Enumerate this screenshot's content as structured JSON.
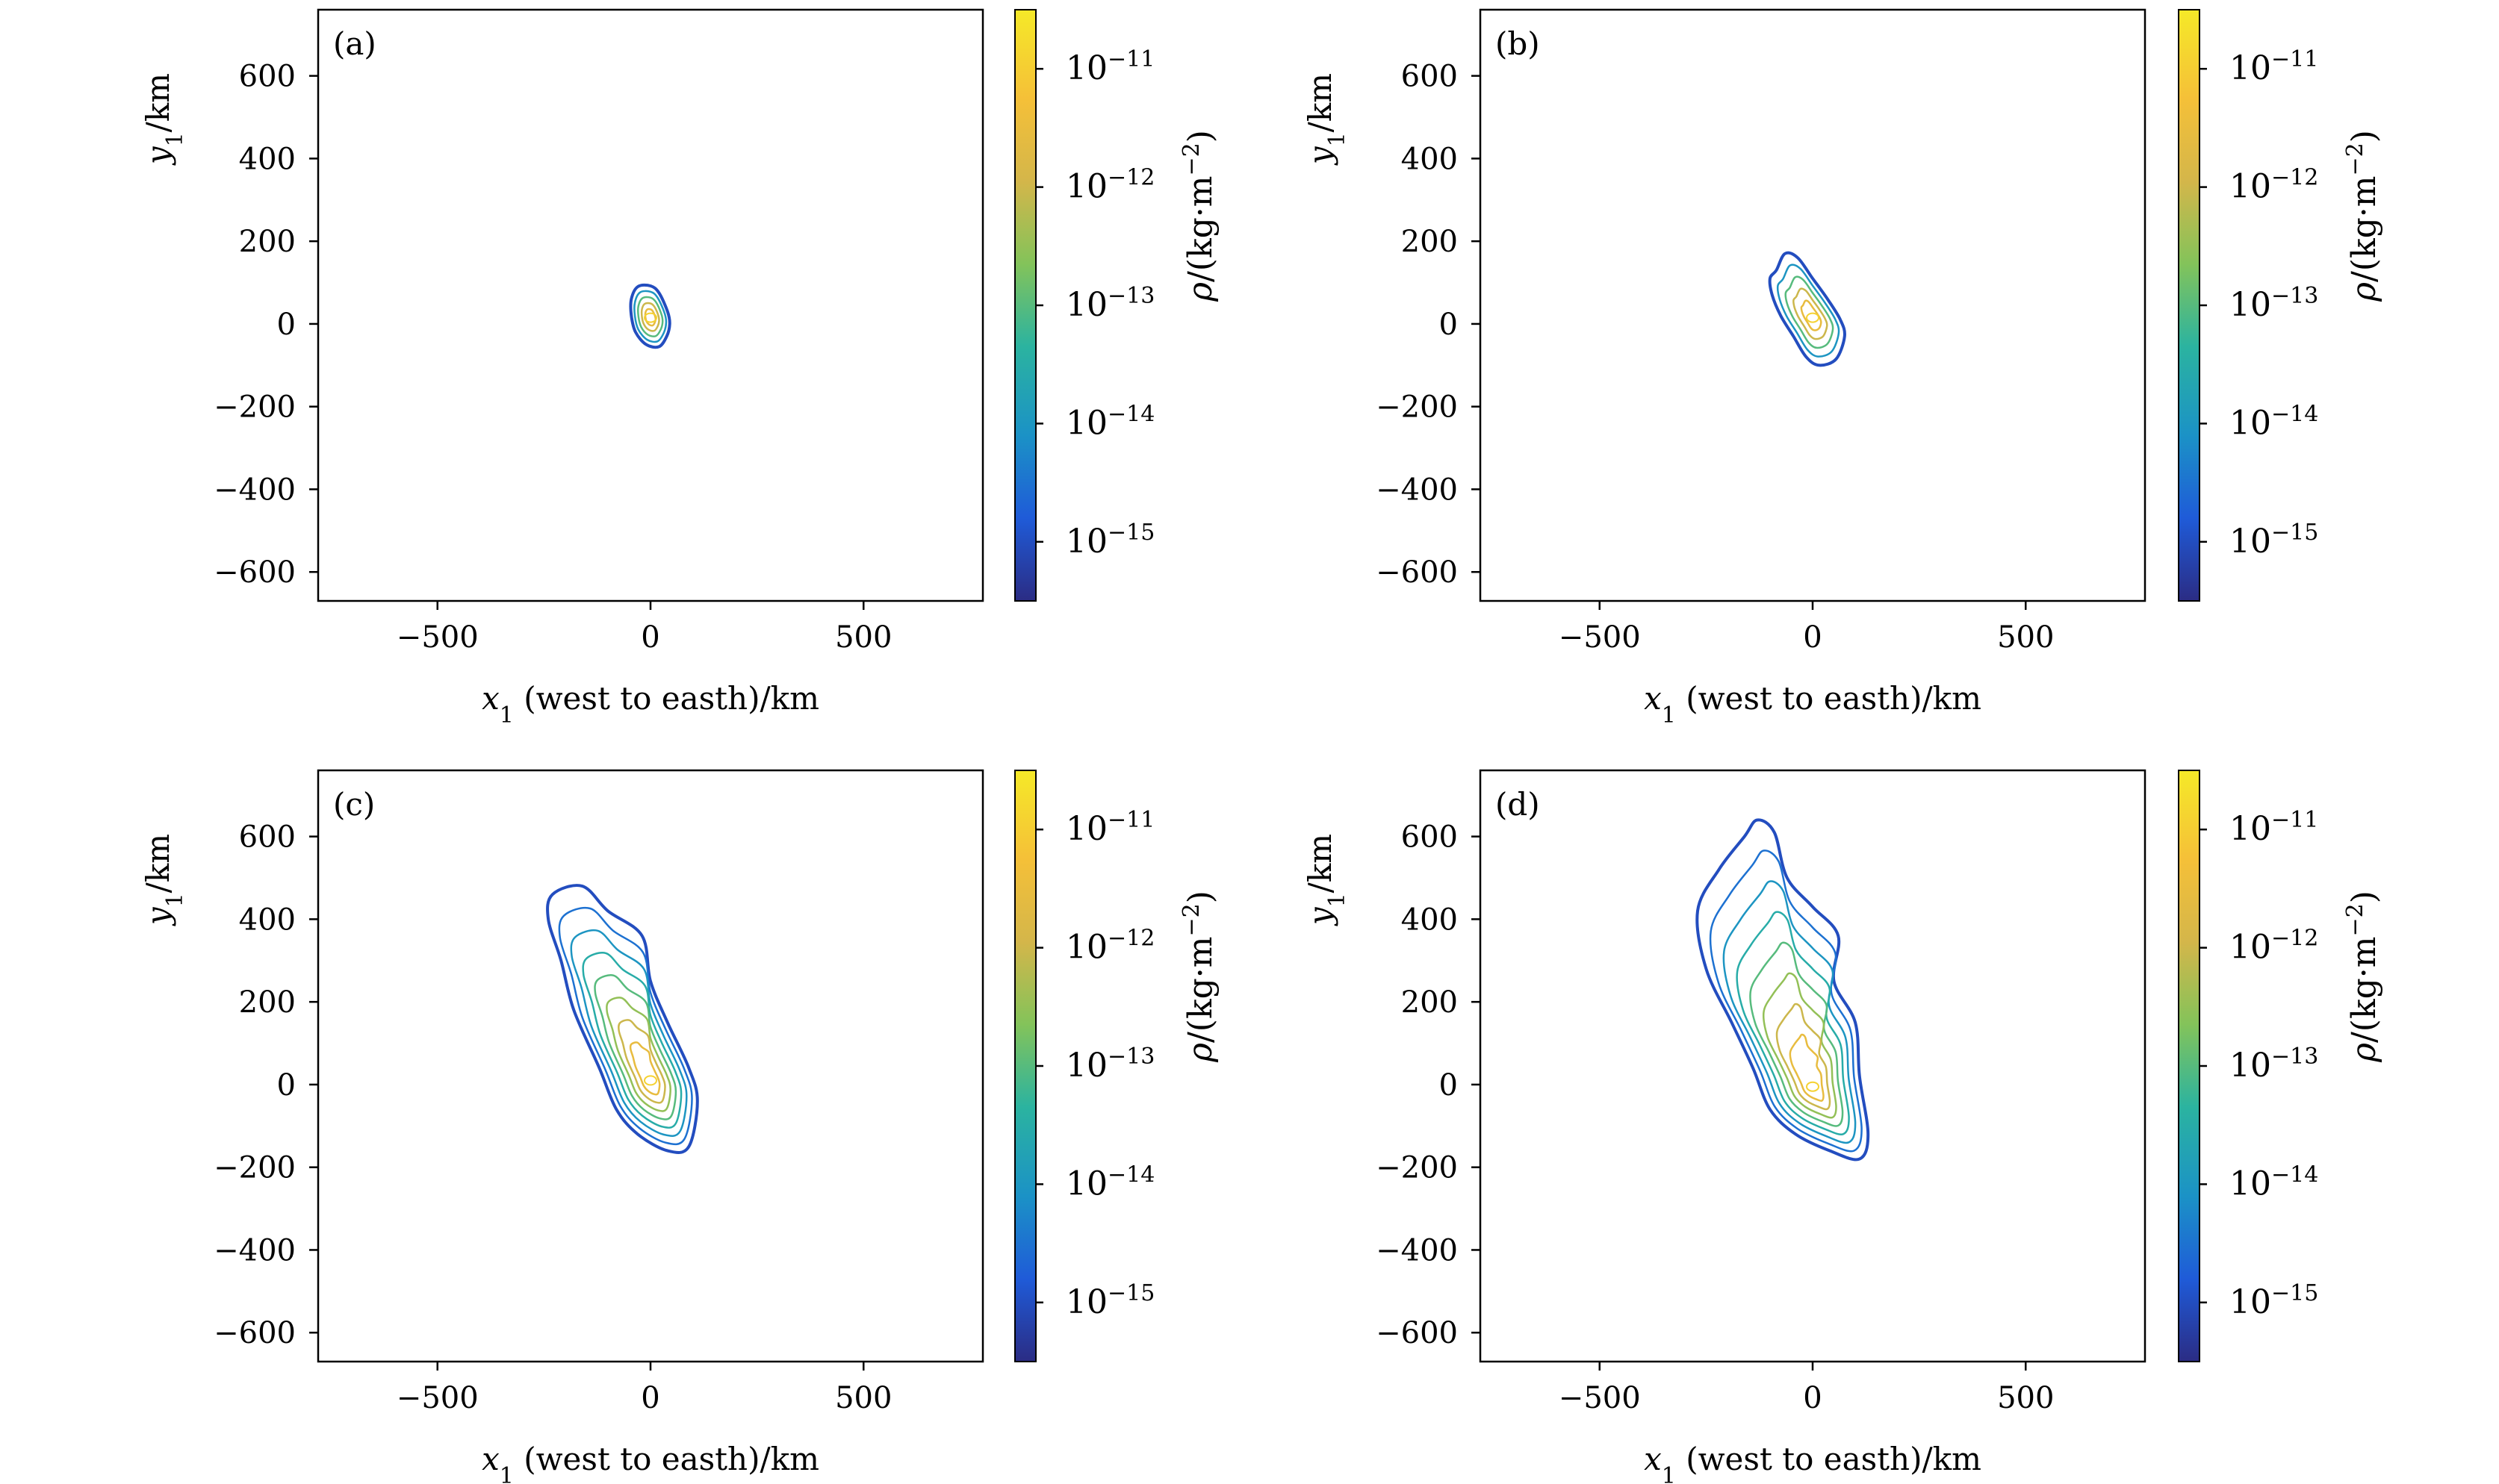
{
  "figure": {
    "type": "contour",
    "x_range": [
      -780,
      780
    ],
    "y_range": [
      -670,
      760
    ],
    "x_ticks": [
      -500,
      0,
      500
    ],
    "y_ticks": [
      600,
      400,
      200,
      0,
      -200,
      -400,
      -600
    ],
    "x_tick_labels": [
      "−500",
      "0",
      "500"
    ],
    "y_tick_labels": [
      "600",
      "400",
      "200",
      "0",
      "−200",
      "−400",
      "−600"
    ],
    "xlabel_var": "x",
    "xlabel_sub": "1",
    "xlabel_rest": " (west to easth)/km",
    "ylabel_var": "y",
    "ylabel_sub": "1",
    "ylabel_rest": "/km",
    "colorbar": {
      "label_main": "ρ/(kg·m",
      "label_sup": "−2",
      "label_end": ")",
      "log_range": [
        -15.5,
        -10.5
      ],
      "colors": [
        "#2b2c84",
        "#1f5bd8",
        "#1b92c6",
        "#2bb3a0",
        "#83c35a",
        "#d4b64a",
        "#f5c038",
        "#f5e928"
      ],
      "ticks": [
        {
          "base": "10",
          "exp": "−11",
          "log": -11
        },
        {
          "base": "10",
          "exp": "−12",
          "log": -12
        },
        {
          "base": "10",
          "exp": "−13",
          "log": -13
        },
        {
          "base": "10",
          "exp": "−14",
          "log": -14
        },
        {
          "base": "10",
          "exp": "−15",
          "log": -15
        }
      ]
    }
  },
  "chart_data": [
    {
      "type": "contour",
      "panel": "(a)",
      "description_levels": "log10 density contours, outer ~1e-15 to inner ~1e-11",
      "cloud": {
        "center": [
          0,
          15
        ],
        "boundary_km": [
          [
            -30,
            90
          ],
          [
            0,
            92
          ],
          [
            20,
            75
          ],
          [
            40,
            30
          ],
          [
            45,
            0
          ],
          [
            38,
            -30
          ],
          [
            20,
            -55
          ],
          [
            -10,
            -50
          ],
          [
            -35,
            -20
          ],
          [
            -45,
            20
          ],
          [
            -45,
            60
          ]
        ],
        "levels": [
          -15,
          -14,
          -13,
          -12,
          -11.5
        ]
      }
    },
    {
      "type": "contour",
      "panel": "(b)",
      "cloud": {
        "center": [
          0,
          15
        ],
        "boundary_km": [
          [
            -85,
            130
          ],
          [
            -65,
            170
          ],
          [
            -35,
            160
          ],
          [
            0,
            110
          ],
          [
            35,
            60
          ],
          [
            65,
            10
          ],
          [
            75,
            -30
          ],
          [
            55,
            -85
          ],
          [
            15,
            -100
          ],
          [
            -15,
            -80
          ],
          [
            -45,
            -30
          ],
          [
            -75,
            20
          ],
          [
            -95,
            70
          ],
          [
            -100,
            110
          ]
        ],
        "levels": [
          -15,
          -14,
          -13,
          -12,
          -11.5
        ]
      }
    },
    {
      "type": "contour",
      "panel": "(c)",
      "cloud": {
        "center": [
          0,
          10
        ],
        "boundary_km": [
          [
            -230,
            460
          ],
          [
            -160,
            480
          ],
          [
            -100,
            420
          ],
          [
            -20,
            360
          ],
          [
            0,
            250
          ],
          [
            40,
            150
          ],
          [
            90,
            40
          ],
          [
            110,
            -40
          ],
          [
            90,
            -150
          ],
          [
            40,
            -160
          ],
          [
            -30,
            -120
          ],
          [
            -80,
            -60
          ],
          [
            -120,
            40
          ],
          [
            -180,
            180
          ],
          [
            -210,
            300
          ],
          [
            -240,
            400
          ]
        ],
        "levels": [
          -15,
          -14.5,
          -14,
          -13.5,
          -13,
          -12.5,
          -12,
          -11.5
        ]
      }
    },
    {
      "type": "contour",
      "panel": "(d)",
      "cloud": {
        "center": [
          0,
          -5
        ],
        "boundary_km": [
          [
            -130,
            640
          ],
          [
            -90,
            610
          ],
          [
            -60,
            500
          ],
          [
            0,
            430
          ],
          [
            60,
            360
          ],
          [
            50,
            250
          ],
          [
            100,
            150
          ],
          [
            110,
            20
          ],
          [
            130,
            -120
          ],
          [
            110,
            -180
          ],
          [
            40,
            -160
          ],
          [
            -40,
            -120
          ],
          [
            -100,
            -60
          ],
          [
            -140,
            40
          ],
          [
            -190,
            150
          ],
          [
            -250,
            280
          ],
          [
            -270,
            420
          ],
          [
            -220,
            520
          ],
          [
            -160,
            600
          ]
        ],
        "levels": [
          -15,
          -14.5,
          -14,
          -13.5,
          -13,
          -12.5,
          -12,
          -11.5
        ]
      }
    }
  ]
}
